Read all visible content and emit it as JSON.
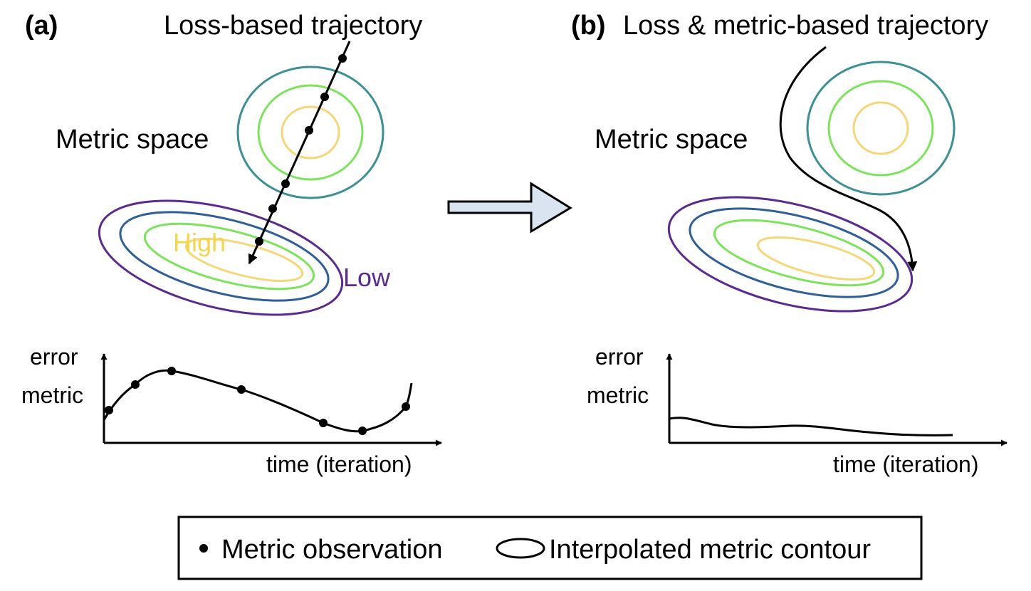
{
  "panel_a": {
    "label": "(a)",
    "title": "Loss-based trajectory",
    "space_label": "Metric space",
    "high_label": "High",
    "low_label": "Low",
    "ylabel_line1": "error",
    "ylabel_line2": "metric",
    "xlabel": "time (iteration)"
  },
  "panel_b": {
    "label": "(b)",
    "title": "Loss & metric-based trajectory",
    "space_label": "Metric space",
    "ylabel_line1": "error",
    "ylabel_line2": "metric",
    "xlabel": "time (iteration)"
  },
  "legend": {
    "dot_label": "Metric observation",
    "contour_label": "Interpolated metric contour"
  },
  "colors": {
    "ring_yellow": "#f5d679",
    "ring_green": "#7ee35c",
    "ring_teal": "#3f8f96",
    "ring_blue": "#2f5f96",
    "ring_purple": "#5b2a8f",
    "high_text": "#f2d64e",
    "low_text": "#5b2a8f",
    "arrow_fill": "#d9e4f0"
  }
}
